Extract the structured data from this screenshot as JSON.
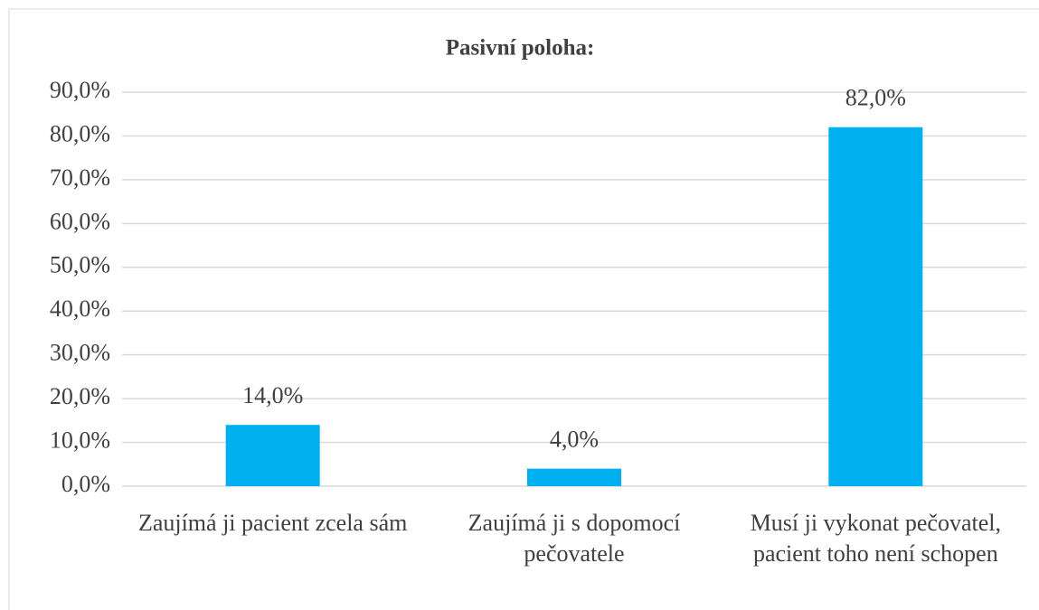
{
  "chart_data": {
    "type": "bar",
    "title": "Pasivní poloha:",
    "categories": [
      "Zaujímá ji pacient zcela sám",
      "Zaujímá ji s dopomocí pečovatele",
      "Musí ji vykonat pečovatel, pacient toho není schopen"
    ],
    "values": [
      14,
      4,
      82
    ],
    "value_labels": [
      "14,0%",
      "4,0%",
      "82,0%"
    ],
    "color": "#00b0f0",
    "ylim": [
      0,
      90
    ],
    "yticks": [
      {
        "value": 0,
        "label": "0,0%"
      },
      {
        "value": 10,
        "label": "10,0%"
      },
      {
        "value": 20,
        "label": "20,0%"
      },
      {
        "value": 30,
        "label": "30,0%"
      },
      {
        "value": 40,
        "label": "40,0%"
      },
      {
        "value": 50,
        "label": "50,0%"
      },
      {
        "value": 60,
        "label": "60,0%"
      },
      {
        "value": 70,
        "label": "70,0%"
      },
      {
        "value": 80,
        "label": "80,0%"
      },
      {
        "value": 90,
        "label": "90,0%"
      }
    ],
    "grid": true
  }
}
